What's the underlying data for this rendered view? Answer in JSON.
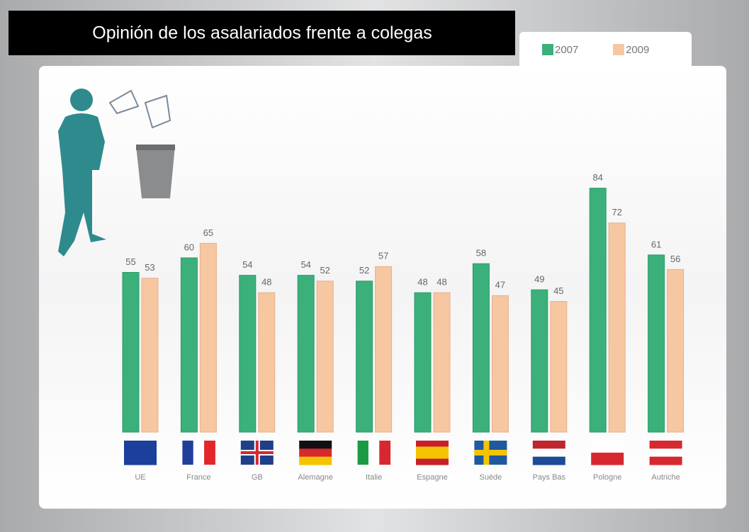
{
  "chart_data": {
    "type": "bar",
    "title": "Opinión de los asalariados frente a colegas",
    "categories": [
      "UE",
      "France",
      "GB",
      "Alemagne",
      "Italie",
      "Espagne",
      "Suède",
      "Pays Bas",
      "Pologne",
      "Autriche"
    ],
    "series": [
      {
        "name": "2007",
        "color": "#3bb07a",
        "values": [
          55,
          60,
          54,
          54,
          52,
          48,
          58,
          49,
          84,
          61
        ]
      },
      {
        "name": "2009",
        "color": "#f6c7a1",
        "values": [
          53,
          65,
          48,
          52,
          57,
          48,
          47,
          45,
          72,
          56
        ]
      }
    ]
  }
}
